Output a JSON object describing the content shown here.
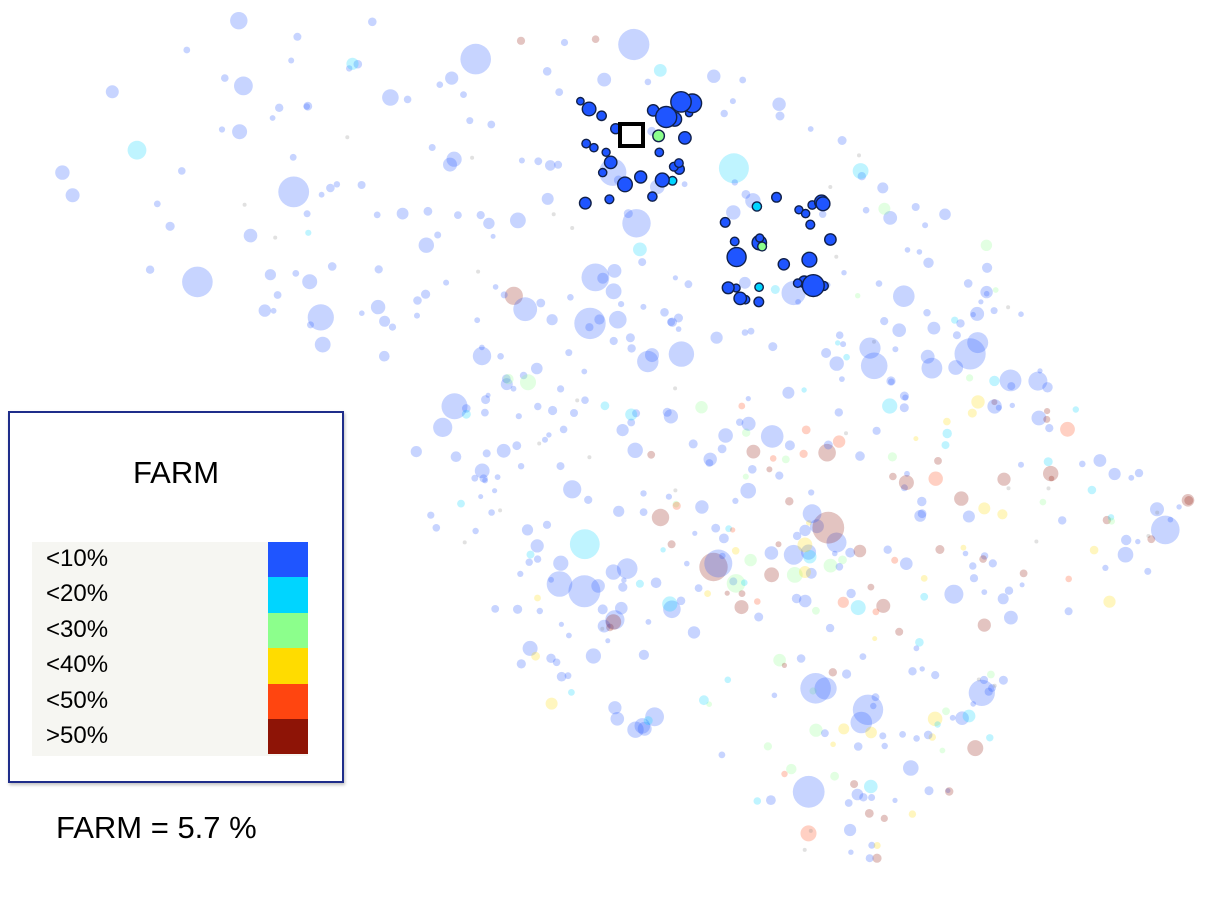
{
  "chart_data": {
    "type": "scatter",
    "title": "",
    "xlabel": "",
    "ylabel": "",
    "grid": false,
    "legend": {
      "title": "FARM",
      "placement": "left",
      "entries": [
        {
          "label": "<10%",
          "color": "#1f55ff"
        },
        {
          "label": "<20%",
          "color": "#00d5ff"
        },
        {
          "label": "<30%",
          "color": "#8cff8c"
        },
        {
          "label": "<40%",
          "color": "#ffdc00"
        },
        {
          "label": "<50%",
          "color": "#ff4510"
        },
        {
          "label": ">50%",
          "color": "#8e1406"
        }
      ]
    },
    "summary": {
      "label": "FARM = 5.7 %",
      "value": 5.7,
      "unit": "%"
    },
    "highlighted_count": 56,
    "background_count": 620,
    "faded_opacity": 0.25
  }
}
